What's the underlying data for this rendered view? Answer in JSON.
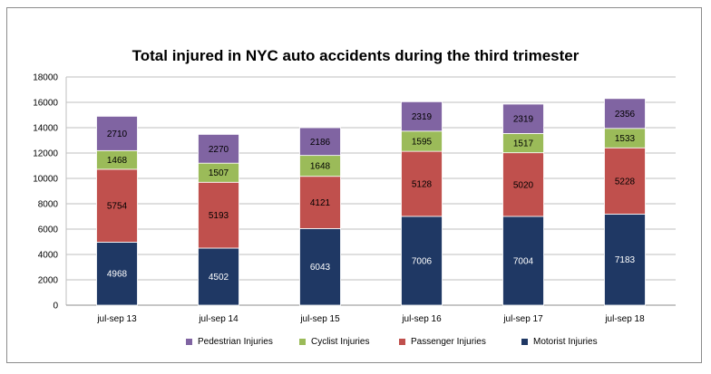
{
  "chart_data": {
    "type": "bar",
    "stacked": true,
    "title": "Total injured in NYC auto accidents during the third trimester",
    "xlabel": "",
    "ylabel": "",
    "categories": [
      "jul-sep 13",
      "jul-sep 14",
      "jul-sep 15",
      "jul-sep 16",
      "jul-sep 17",
      "jul-sep 18"
    ],
    "ylim": [
      0,
      18000
    ],
    "yticks": [
      0,
      2000,
      4000,
      6000,
      8000,
      10000,
      12000,
      14000,
      16000,
      18000
    ],
    "grid": true,
    "legend_position": "bottom",
    "series": [
      {
        "name": "Motorist Injuries",
        "color": "#1f3864",
        "label_color": "#ffffff",
        "values": [
          4968,
          4502,
          6043,
          7006,
          7004,
          7183
        ]
      },
      {
        "name": "Passenger Injuries",
        "color": "#c0504d",
        "label_color": "#000000",
        "values": [
          5754,
          5193,
          4121,
          5128,
          5020,
          5228
        ]
      },
      {
        "name": "Cyclist Injuries",
        "color": "#9bbb59",
        "label_color": "#000000",
        "values": [
          1468,
          1507,
          1648,
          1595,
          1517,
          1533
        ]
      },
      {
        "name": "Pedestrian Injuries",
        "color": "#8064a2",
        "label_color": "#000000",
        "values": [
          2710,
          2270,
          2186,
          2319,
          2319,
          2356
        ]
      }
    ],
    "legend_order": [
      "Pedestrian Injuries",
      "Cyclist Injuries",
      "Passenger Injuries",
      "Motorist Injuries"
    ]
  }
}
